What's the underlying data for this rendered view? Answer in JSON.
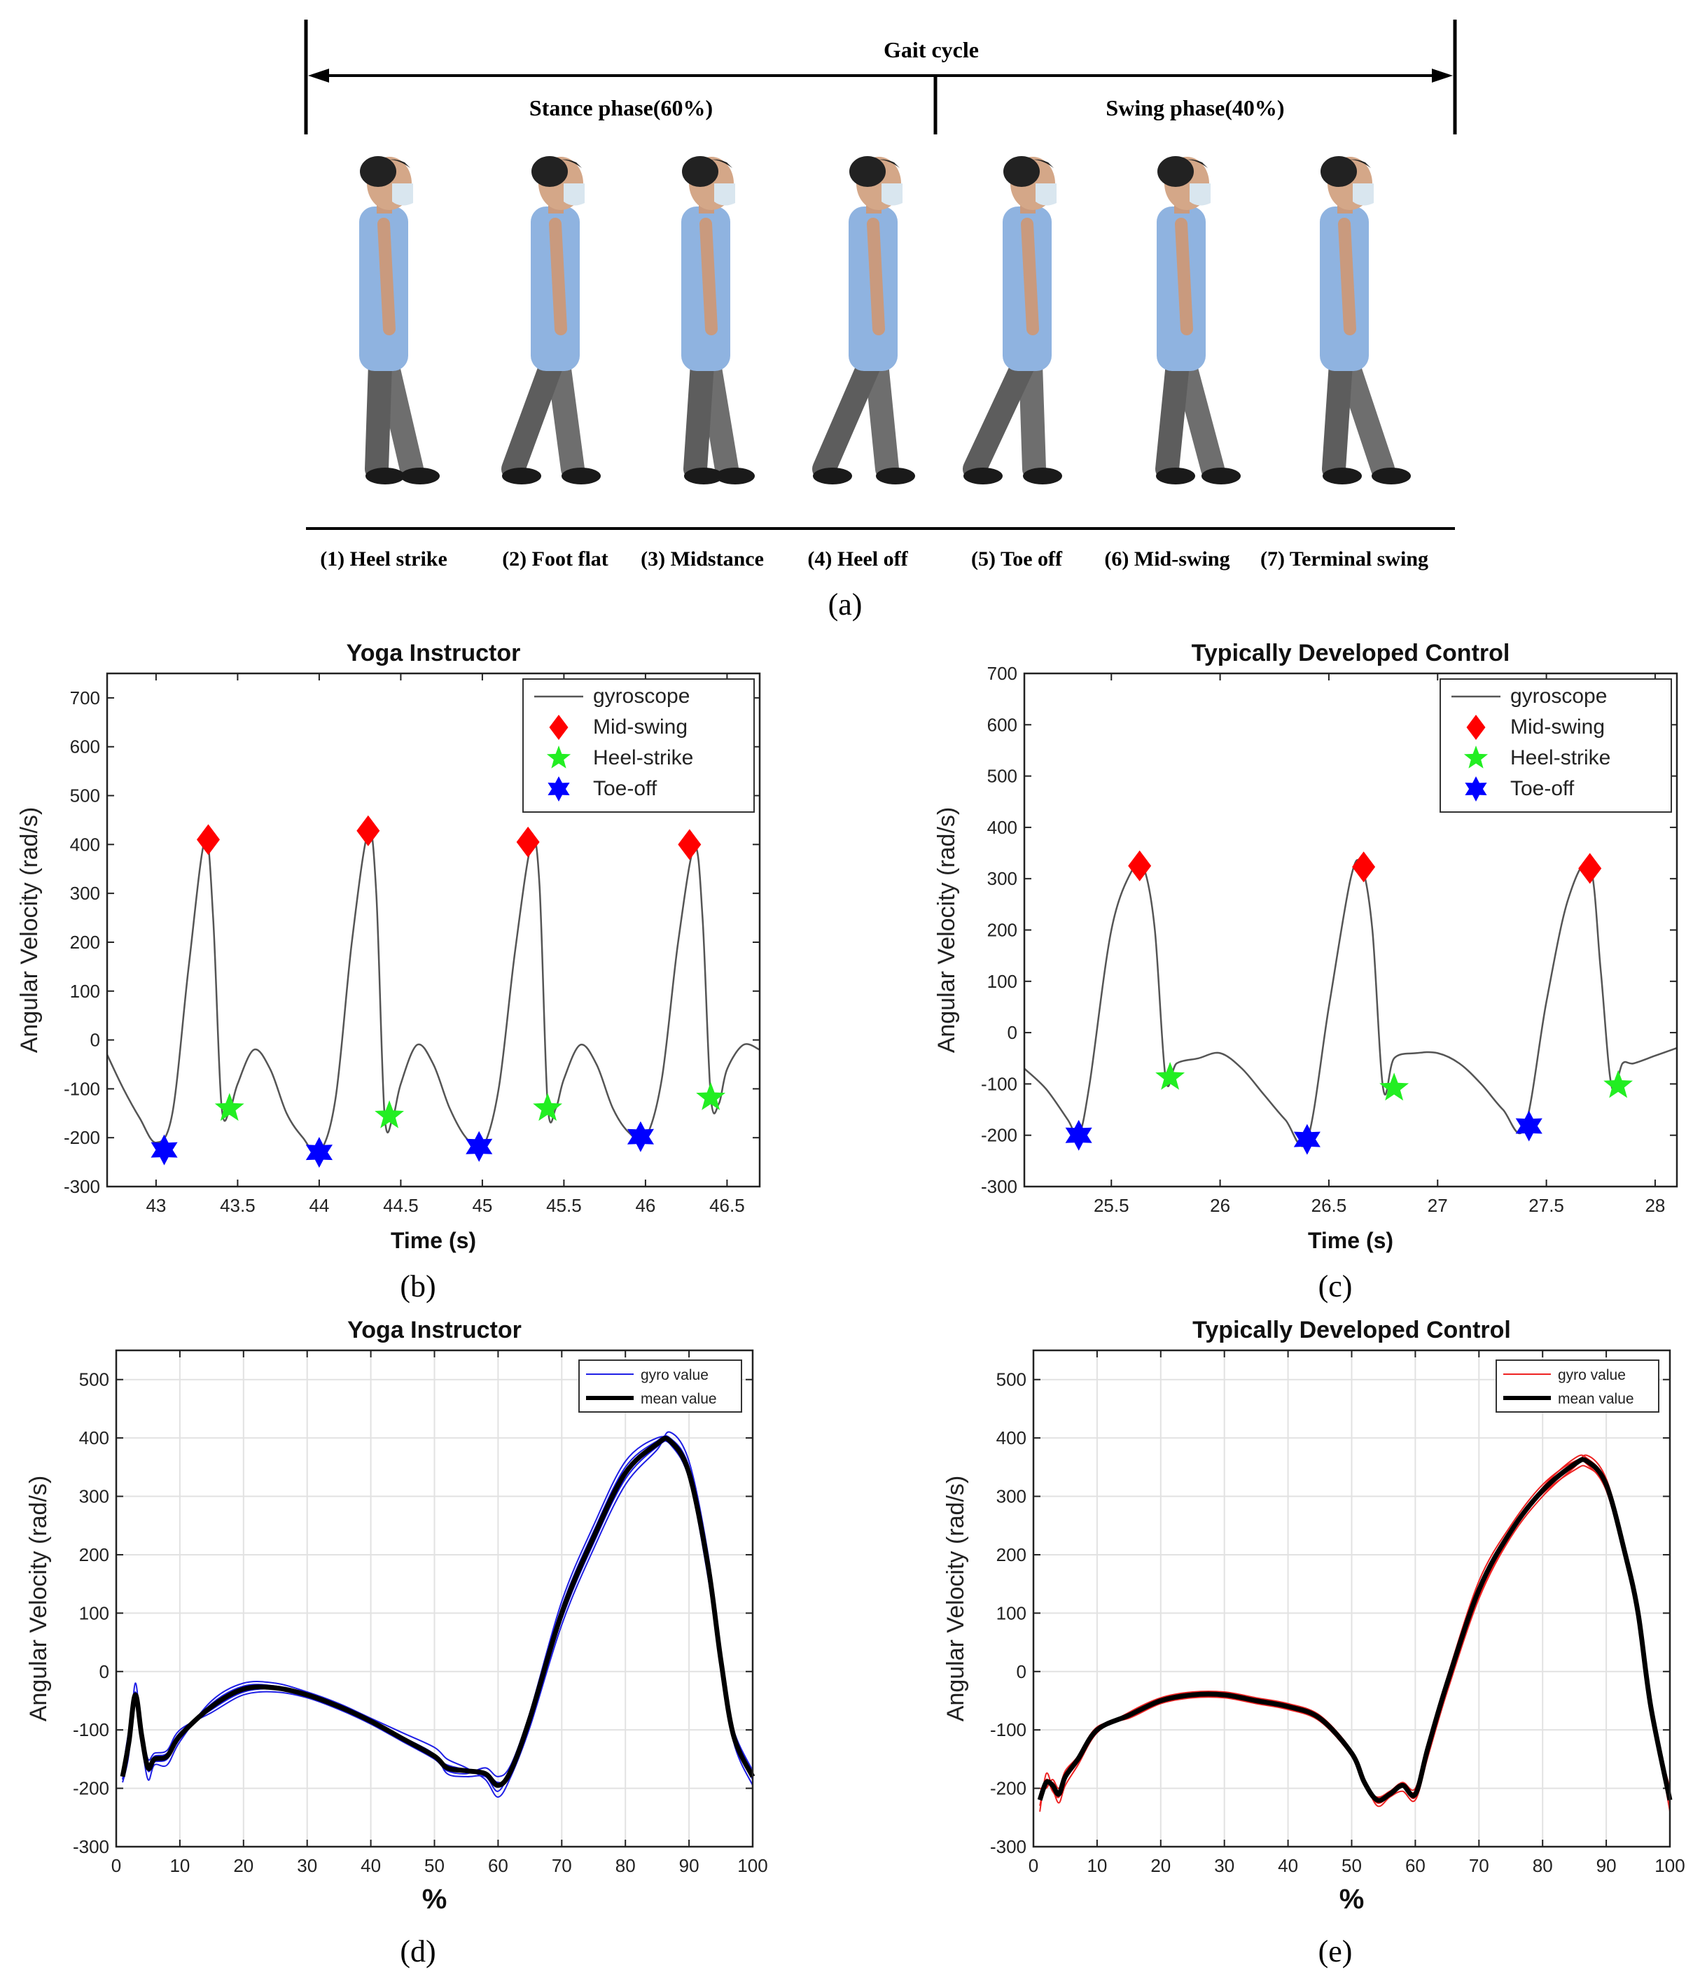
{
  "panel_a": {
    "header": "Gait cycle",
    "stance_label": "Stance phase(60%)",
    "swing_label": "Swing phase(40%)",
    "phases": [
      "(1) Heel strike",
      "(2) Foot flat",
      "(3) Midstance",
      "(4) Heel off",
      "(5) Toe off",
      "(6) Mid-swing",
      "(7) Terminal swing"
    ],
    "label": "(a)",
    "shirt_color": "#8fb3e0",
    "pants_color": "#6e6e6e"
  },
  "panel_labels": [
    "(b)",
    "(c)",
    "(d)",
    "(e)"
  ],
  "chart_data": [
    {
      "id": "b",
      "type": "line",
      "title": "Yoga Instructor",
      "xlabel": "Time (s)",
      "ylabel": "Angular Velocity (rad/s)",
      "xlim": [
        42.7,
        46.7
      ],
      "ylim": [
        -300,
        750
      ],
      "xticks": [
        43,
        43.5,
        44,
        44.5,
        45,
        45.5,
        46,
        46.5
      ],
      "xticklabels": [
        "43",
        "43.5",
        "44",
        "44.5",
        "45",
        "45.5",
        "46",
        "46.5"
      ],
      "yticks": [
        -300,
        -200,
        -100,
        0,
        100,
        200,
        300,
        400,
        500,
        600,
        700
      ],
      "yticklabels": [
        "-300",
        "-200",
        "-100",
        "0",
        "100",
        "200",
        "300",
        "400",
        "500",
        "600",
        "700"
      ],
      "grid": false,
      "legend": {
        "position": "top-right",
        "entries": [
          "gyroscope",
          "Mid-swing",
          "Heel-strike",
          "Toe-off"
        ]
      },
      "colors": {
        "line": "#555555",
        "mid_swing": "#ff0000",
        "heel_strike": "#22ee22",
        "toe_off": "#0000ff"
      },
      "series": [
        {
          "name": "gyroscope",
          "x": [
            42.7,
            42.8,
            42.9,
            43.0,
            43.1,
            43.2,
            43.3,
            43.35,
            43.4,
            43.45,
            43.5,
            43.6,
            43.7,
            43.8,
            43.9,
            44.0,
            44.1,
            44.2,
            44.3,
            44.35,
            44.4,
            44.45,
            44.5,
            44.6,
            44.7,
            44.8,
            44.9,
            45.0,
            45.1,
            45.2,
            45.3,
            45.35,
            45.4,
            45.45,
            45.5,
            45.6,
            45.7,
            45.8,
            45.9,
            46.0,
            46.1,
            46.2,
            46.3,
            46.35,
            46.4,
            46.45,
            46.5,
            46.6,
            46.7
          ],
          "y": [
            -30,
            -100,
            -160,
            -210,
            -150,
            150,
            410,
            250,
            -130,
            -145,
            -90,
            -20,
            -60,
            -150,
            -200,
            -230,
            -120,
            200,
            425,
            300,
            -150,
            -160,
            -90,
            -10,
            -50,
            -140,
            -200,
            -220,
            -100,
            180,
            400,
            320,
            -130,
            -140,
            -80,
            -10,
            -50,
            -140,
            -190,
            -200,
            -80,
            200,
            395,
            250,
            -115,
            -130,
            -60,
            -10,
            -20
          ]
        },
        {
          "name": "Mid-swing",
          "x": [
            43.32,
            44.3,
            45.28,
            46.27
          ],
          "y": [
            410,
            428,
            405,
            400
          ]
        },
        {
          "name": "Heel-strike",
          "x": [
            43.45,
            44.43,
            45.4,
            46.4
          ],
          "y": [
            -140,
            -155,
            -140,
            -118
          ]
        },
        {
          "name": "Toe-off",
          "x": [
            43.05,
            44.0,
            44.98,
            45.97
          ],
          "y": [
            -225,
            -230,
            -218,
            -198
          ]
        }
      ]
    },
    {
      "id": "c",
      "type": "line",
      "title": "Typically Developed Control",
      "xlabel": "Time (s)",
      "ylabel": "Angular Velocity (rad/s)",
      "xlim": [
        25.1,
        28.1
      ],
      "ylim": [
        -300,
        700
      ],
      "xticks": [
        25.5,
        26,
        26.5,
        27,
        27.5,
        28
      ],
      "xticklabels": [
        "25.5",
        "26",
        "26.5",
        "27",
        "27.5",
        "28"
      ],
      "yticks": [
        -300,
        -200,
        -100,
        0,
        100,
        200,
        300,
        400,
        500,
        600,
        700
      ],
      "yticklabels": [
        "-300",
        "-200",
        "-100",
        "0",
        "100",
        "200",
        "300",
        "400",
        "500",
        "600",
        "700"
      ],
      "grid": false,
      "legend": {
        "position": "top-right",
        "entries": [
          "gyroscope",
          "Mid-swing",
          "Heel-strike",
          "Toe-off"
        ]
      },
      "colors": {
        "line": "#555555",
        "mid_swing": "#ff0000",
        "heel_strike": "#22ee22",
        "toe_off": "#0000ff"
      },
      "series": [
        {
          "name": "gyroscope",
          "x": [
            25.1,
            25.2,
            25.3,
            25.35,
            25.4,
            25.5,
            25.6,
            25.65,
            25.7,
            25.75,
            25.8,
            25.9,
            26.0,
            26.1,
            26.2,
            26.3,
            26.4,
            26.5,
            26.6,
            26.65,
            26.7,
            26.75,
            26.8,
            26.9,
            27.0,
            27.1,
            27.2,
            27.3,
            27.4,
            27.5,
            27.6,
            27.7,
            27.75,
            27.8,
            27.85,
            27.9,
            28.0,
            28.1
          ],
          "y": [
            -70,
            -110,
            -170,
            -200,
            -100,
            200,
            320,
            320,
            200,
            -90,
            -60,
            -50,
            -40,
            -70,
            -120,
            -170,
            -210,
            50,
            300,
            325,
            200,
            -110,
            -50,
            -40,
            -40,
            -60,
            -100,
            -150,
            -185,
            60,
            260,
            325,
            120,
            -105,
            -60,
            -60,
            -45,
            -30
          ]
        },
        {
          "name": "Mid-swing",
          "x": [
            25.63,
            26.66,
            27.7
          ],
          "y": [
            325,
            323,
            320
          ]
        },
        {
          "name": "Heel-strike",
          "x": [
            25.77,
            26.8,
            27.83
          ],
          "y": [
            -87,
            -108,
            -103
          ]
        },
        {
          "name": "Toe-off",
          "x": [
            25.35,
            26.4,
            27.42
          ],
          "y": [
            -200,
            -208,
            -182
          ]
        }
      ]
    },
    {
      "id": "d",
      "type": "line",
      "title": "Yoga Instructor",
      "xlabel": "%",
      "ylabel": "Angular Velocity (rad/s)",
      "xlim": [
        0,
        100
      ],
      "ylim": [
        -300,
        550
      ],
      "xticks": [
        0,
        10,
        20,
        30,
        40,
        50,
        60,
        70,
        80,
        90,
        100
      ],
      "xticklabels": [
        "0",
        "10",
        "20",
        "30",
        "40",
        "50",
        "60",
        "70",
        "80",
        "90",
        "100"
      ],
      "yticks": [
        -300,
        -200,
        -100,
        0,
        100,
        200,
        300,
        400,
        500
      ],
      "yticklabels": [
        "-300",
        "-200",
        "-100",
        "0",
        "100",
        "200",
        "300",
        "400",
        "500"
      ],
      "grid": true,
      "legend": {
        "position": "top-right",
        "entries": [
          "gyro value",
          "mean value"
        ]
      },
      "colors": {
        "trials": "#1f1fe6",
        "mean": "#000000"
      },
      "x": [
        1,
        2,
        3,
        4,
        5,
        6,
        8,
        10,
        15,
        20,
        25,
        30,
        35,
        40,
        45,
        50,
        52,
        55,
        58,
        60,
        62,
        65,
        70,
        75,
        80,
        85,
        87,
        90,
        93,
        95,
        97,
        100
      ],
      "series": [
        {
          "name": "mean value",
          "values": [
            -180,
            -120,
            -40,
            -110,
            -165,
            -150,
            -145,
            -110,
            -60,
            -30,
            -28,
            -40,
            -60,
            -85,
            -115,
            -145,
            -165,
            -170,
            -175,
            -195,
            -170,
            -80,
            100,
            230,
            340,
            390,
            395,
            340,
            180,
            20,
            -110,
            -180
          ]
        },
        {
          "name": "gyro value",
          "values": [
            -190,
            -140,
            -20,
            -120,
            -185,
            -160,
            -160,
            -120,
            -50,
            -20,
            -20,
            -35,
            -55,
            -80,
            -105,
            -130,
            -150,
            -165,
            -185,
            -215,
            -180,
            -95,
            80,
            210,
            320,
            380,
            410,
            360,
            200,
            30,
            -120,
            -195
          ]
        },
        {
          "name": "",
          "values": [
            -170,
            -100,
            -50,
            -100,
            -150,
            -140,
            -135,
            -100,
            -70,
            -40,
            -35,
            -45,
            -65,
            -90,
            -120,
            -150,
            -170,
            -175,
            -165,
            -180,
            -160,
            -70,
            120,
            250,
            360,
            400,
            390,
            330,
            160,
            10,
            -100,
            -170
          ]
        },
        {
          "name": "",
          "values": [
            -185,
            -110,
            -35,
            -115,
            -170,
            -155,
            -150,
            -115,
            -55,
            -25,
            -25,
            -38,
            -58,
            -83,
            -112,
            -142,
            -175,
            -180,
            -180,
            -205,
            -165,
            -75,
            110,
            240,
            350,
            395,
            400,
            350,
            190,
            25,
            -115,
            -185
          ]
        },
        {
          "name": "",
          "values": [
            -175,
            -125,
            -45,
            -105,
            -160,
            -145,
            -140,
            -105,
            -65,
            -35,
            -30,
            -42,
            -62,
            -87,
            -118,
            -148,
            -160,
            -168,
            -172,
            -190,
            -175,
            -85,
            90,
            220,
            330,
            385,
            390,
            335,
            170,
            15,
            -105,
            -175
          ]
        }
      ]
    },
    {
      "id": "e",
      "type": "line",
      "title": "Typically Developed Control",
      "xlabel": "%",
      "ylabel": "Angular Velocity (rad/s)",
      "xlim": [
        0,
        100
      ],
      "ylim": [
        -300,
        550
      ],
      "xticks": [
        0,
        10,
        20,
        30,
        40,
        50,
        60,
        70,
        80,
        90,
        100
      ],
      "xticklabels": [
        "0",
        "10",
        "20",
        "30",
        "40",
        "50",
        "60",
        "70",
        "80",
        "90",
        "100"
      ],
      "yticks": [
        -300,
        -200,
        -100,
        0,
        100,
        200,
        300,
        400,
        500
      ],
      "yticklabels": [
        "-300",
        "-200",
        "-100",
        "0",
        "100",
        "200",
        "300",
        "400",
        "500"
      ],
      "grid": true,
      "legend": {
        "position": "top-right",
        "entries": [
          "gyro value",
          "mean value"
        ]
      },
      "colors": {
        "trials": "#ee2222",
        "mean": "#000000"
      },
      "x": [
        1,
        2,
        3,
        4,
        5,
        7,
        10,
        15,
        20,
        25,
        30,
        35,
        40,
        45,
        50,
        52,
        54,
        56,
        58,
        60,
        62,
        65,
        70,
        75,
        80,
        85,
        87,
        90,
        93,
        95,
        97,
        100
      ],
      "series": [
        {
          "name": "mean value",
          "values": [
            -220,
            -190,
            -195,
            -210,
            -180,
            -150,
            -100,
            -75,
            -50,
            -40,
            -40,
            -50,
            -60,
            -80,
            -140,
            -190,
            -220,
            -210,
            -195,
            -210,
            -130,
            -20,
            140,
            240,
            310,
            355,
            360,
            320,
            200,
            100,
            -60,
            -220
          ]
        },
        {
          "name": "gyro value",
          "values": [
            -240,
            -175,
            -200,
            -225,
            -195,
            -160,
            -105,
            -70,
            -45,
            -35,
            -35,
            -45,
            -55,
            -75,
            -135,
            -185,
            -230,
            -215,
            -205,
            -220,
            -145,
            -35,
            125,
            230,
            300,
            350,
            370,
            330,
            210,
            110,
            -50,
            -240
          ]
        },
        {
          "name": "",
          "values": [
            -200,
            -200,
            -185,
            -200,
            -170,
            -145,
            -95,
            -80,
            -55,
            -45,
            -45,
            -55,
            -65,
            -85,
            -145,
            -195,
            -215,
            -205,
            -190,
            -200,
            -120,
            -10,
            155,
            250,
            320,
            360,
            355,
            310,
            190,
            90,
            -70,
            -200
          ]
        },
        {
          "name": "",
          "values": [
            -230,
            -185,
            -205,
            -215,
            -185,
            -155,
            -102,
            -72,
            -48,
            -38,
            -38,
            -48,
            -58,
            -78,
            -138,
            -192,
            -225,
            -212,
            -198,
            -215,
            -135,
            -25,
            130,
            235,
            315,
            365,
            365,
            325,
            205,
            105,
            -55,
            -230
          ]
        },
        {
          "name": "",
          "values": [
            -210,
            -195,
            -190,
            -205,
            -175,
            -148,
            -98,
            -78,
            -52,
            -42,
            -42,
            -52,
            -62,
            -82,
            -142,
            -188,
            -218,
            -208,
            -192,
            -205,
            -125,
            -15,
            145,
            245,
            305,
            345,
            350,
            315,
            195,
            95,
            -65,
            -210
          ]
        }
      ]
    }
  ]
}
